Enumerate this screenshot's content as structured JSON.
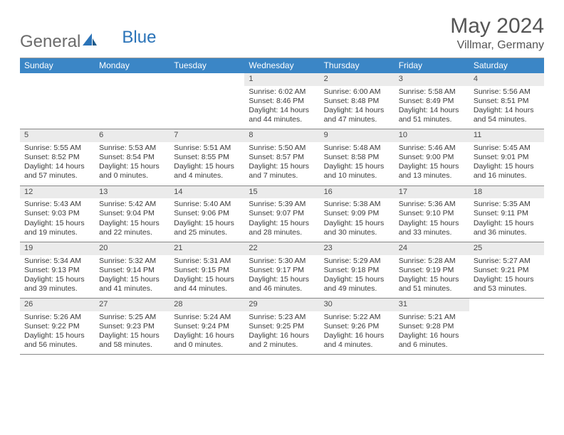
{
  "logo": {
    "part1": "General",
    "part2": "Blue"
  },
  "title": "May 2024",
  "location": "Villmar, Germany",
  "colors": {
    "header_bg": "#3b86c6",
    "header_text": "#ffffff",
    "daynum_bg": "#ebebeb",
    "text": "#3a3a3a",
    "rule": "#888888"
  },
  "dayNames": [
    "Sunday",
    "Monday",
    "Tuesday",
    "Wednesday",
    "Thursday",
    "Friday",
    "Saturday"
  ],
  "weeks": [
    [
      null,
      null,
      null,
      {
        "d": "1",
        "sr": "Sunrise: 6:02 AM",
        "ss": "Sunset: 8:46 PM",
        "dl1": "Daylight: 14 hours",
        "dl2": "and 44 minutes."
      },
      {
        "d": "2",
        "sr": "Sunrise: 6:00 AM",
        "ss": "Sunset: 8:48 PM",
        "dl1": "Daylight: 14 hours",
        "dl2": "and 47 minutes."
      },
      {
        "d": "3",
        "sr": "Sunrise: 5:58 AM",
        "ss": "Sunset: 8:49 PM",
        "dl1": "Daylight: 14 hours",
        "dl2": "and 51 minutes."
      },
      {
        "d": "4",
        "sr": "Sunrise: 5:56 AM",
        "ss": "Sunset: 8:51 PM",
        "dl1": "Daylight: 14 hours",
        "dl2": "and 54 minutes."
      }
    ],
    [
      {
        "d": "5",
        "sr": "Sunrise: 5:55 AM",
        "ss": "Sunset: 8:52 PM",
        "dl1": "Daylight: 14 hours",
        "dl2": "and 57 minutes."
      },
      {
        "d": "6",
        "sr": "Sunrise: 5:53 AM",
        "ss": "Sunset: 8:54 PM",
        "dl1": "Daylight: 15 hours",
        "dl2": "and 0 minutes."
      },
      {
        "d": "7",
        "sr": "Sunrise: 5:51 AM",
        "ss": "Sunset: 8:55 PM",
        "dl1": "Daylight: 15 hours",
        "dl2": "and 4 minutes."
      },
      {
        "d": "8",
        "sr": "Sunrise: 5:50 AM",
        "ss": "Sunset: 8:57 PM",
        "dl1": "Daylight: 15 hours",
        "dl2": "and 7 minutes."
      },
      {
        "d": "9",
        "sr": "Sunrise: 5:48 AM",
        "ss": "Sunset: 8:58 PM",
        "dl1": "Daylight: 15 hours",
        "dl2": "and 10 minutes."
      },
      {
        "d": "10",
        "sr": "Sunrise: 5:46 AM",
        "ss": "Sunset: 9:00 PM",
        "dl1": "Daylight: 15 hours",
        "dl2": "and 13 minutes."
      },
      {
        "d": "11",
        "sr": "Sunrise: 5:45 AM",
        "ss": "Sunset: 9:01 PM",
        "dl1": "Daylight: 15 hours",
        "dl2": "and 16 minutes."
      }
    ],
    [
      {
        "d": "12",
        "sr": "Sunrise: 5:43 AM",
        "ss": "Sunset: 9:03 PM",
        "dl1": "Daylight: 15 hours",
        "dl2": "and 19 minutes."
      },
      {
        "d": "13",
        "sr": "Sunrise: 5:42 AM",
        "ss": "Sunset: 9:04 PM",
        "dl1": "Daylight: 15 hours",
        "dl2": "and 22 minutes."
      },
      {
        "d": "14",
        "sr": "Sunrise: 5:40 AM",
        "ss": "Sunset: 9:06 PM",
        "dl1": "Daylight: 15 hours",
        "dl2": "and 25 minutes."
      },
      {
        "d": "15",
        "sr": "Sunrise: 5:39 AM",
        "ss": "Sunset: 9:07 PM",
        "dl1": "Daylight: 15 hours",
        "dl2": "and 28 minutes."
      },
      {
        "d": "16",
        "sr": "Sunrise: 5:38 AM",
        "ss": "Sunset: 9:09 PM",
        "dl1": "Daylight: 15 hours",
        "dl2": "and 30 minutes."
      },
      {
        "d": "17",
        "sr": "Sunrise: 5:36 AM",
        "ss": "Sunset: 9:10 PM",
        "dl1": "Daylight: 15 hours",
        "dl2": "and 33 minutes."
      },
      {
        "d": "18",
        "sr": "Sunrise: 5:35 AM",
        "ss": "Sunset: 9:11 PM",
        "dl1": "Daylight: 15 hours",
        "dl2": "and 36 minutes."
      }
    ],
    [
      {
        "d": "19",
        "sr": "Sunrise: 5:34 AM",
        "ss": "Sunset: 9:13 PM",
        "dl1": "Daylight: 15 hours",
        "dl2": "and 39 minutes."
      },
      {
        "d": "20",
        "sr": "Sunrise: 5:32 AM",
        "ss": "Sunset: 9:14 PM",
        "dl1": "Daylight: 15 hours",
        "dl2": "and 41 minutes."
      },
      {
        "d": "21",
        "sr": "Sunrise: 5:31 AM",
        "ss": "Sunset: 9:15 PM",
        "dl1": "Daylight: 15 hours",
        "dl2": "and 44 minutes."
      },
      {
        "d": "22",
        "sr": "Sunrise: 5:30 AM",
        "ss": "Sunset: 9:17 PM",
        "dl1": "Daylight: 15 hours",
        "dl2": "and 46 minutes."
      },
      {
        "d": "23",
        "sr": "Sunrise: 5:29 AM",
        "ss": "Sunset: 9:18 PM",
        "dl1": "Daylight: 15 hours",
        "dl2": "and 49 minutes."
      },
      {
        "d": "24",
        "sr": "Sunrise: 5:28 AM",
        "ss": "Sunset: 9:19 PM",
        "dl1": "Daylight: 15 hours",
        "dl2": "and 51 minutes."
      },
      {
        "d": "25",
        "sr": "Sunrise: 5:27 AM",
        "ss": "Sunset: 9:21 PM",
        "dl1": "Daylight: 15 hours",
        "dl2": "and 53 minutes."
      }
    ],
    [
      {
        "d": "26",
        "sr": "Sunrise: 5:26 AM",
        "ss": "Sunset: 9:22 PM",
        "dl1": "Daylight: 15 hours",
        "dl2": "and 56 minutes."
      },
      {
        "d": "27",
        "sr": "Sunrise: 5:25 AM",
        "ss": "Sunset: 9:23 PM",
        "dl1": "Daylight: 15 hours",
        "dl2": "and 58 minutes."
      },
      {
        "d": "28",
        "sr": "Sunrise: 5:24 AM",
        "ss": "Sunset: 9:24 PM",
        "dl1": "Daylight: 16 hours",
        "dl2": "and 0 minutes."
      },
      {
        "d": "29",
        "sr": "Sunrise: 5:23 AM",
        "ss": "Sunset: 9:25 PM",
        "dl1": "Daylight: 16 hours",
        "dl2": "and 2 minutes."
      },
      {
        "d": "30",
        "sr": "Sunrise: 5:22 AM",
        "ss": "Sunset: 9:26 PM",
        "dl1": "Daylight: 16 hours",
        "dl2": "and 4 minutes."
      },
      {
        "d": "31",
        "sr": "Sunrise: 5:21 AM",
        "ss": "Sunset: 9:28 PM",
        "dl1": "Daylight: 16 hours",
        "dl2": "and 6 minutes."
      },
      null
    ]
  ]
}
